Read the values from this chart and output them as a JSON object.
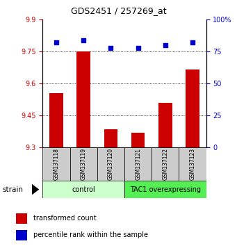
{
  "title": "GDS2451 / 257269_at",
  "samples": [
    "GSM137118",
    "GSM137119",
    "GSM137120",
    "GSM137121",
    "GSM137122",
    "GSM137123"
  ],
  "red_values": [
    9.555,
    9.75,
    9.385,
    9.37,
    9.51,
    9.665
  ],
  "blue_values": [
    82,
    84,
    78,
    78,
    80,
    82
  ],
  "ylim_left": [
    9.3,
    9.9
  ],
  "ylim_right": [
    0,
    100
  ],
  "yticks_left": [
    9.3,
    9.45,
    9.6,
    9.75,
    9.9
  ],
  "yticks_right": [
    0,
    25,
    50,
    75,
    100
  ],
  "ytick_labels_right": [
    "0",
    "25",
    "50",
    "75",
    "100%"
  ],
  "groups": [
    {
      "label": "control",
      "start": 0,
      "end": 2,
      "color": "#ccffcc"
    },
    {
      "label": "TAC1 overexpressing",
      "start": 3,
      "end": 5,
      "color": "#55ee55"
    }
  ],
  "bar_color": "#cc0000",
  "dot_color": "#0000cc",
  "bar_width": 0.5,
  "bg_color": "#ffffff",
  "label_red": "transformed count",
  "label_blue": "percentile rank within the sample",
  "strain_label": "strain",
  "left_tick_color": "#cc0000",
  "right_tick_color": "#0000cc",
  "sample_box_color": "#cccccc",
  "title_fontsize": 9,
  "tick_fontsize": 7,
  "legend_fontsize": 7,
  "group_fontsize": 7,
  "sample_fontsize": 5.5
}
